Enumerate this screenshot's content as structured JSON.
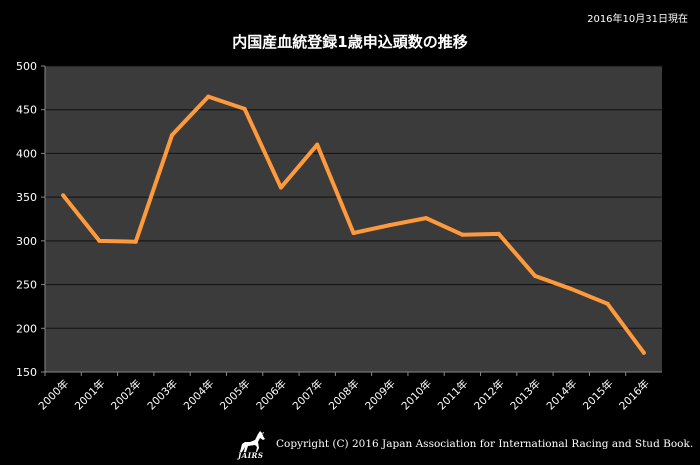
{
  "date_note": "2016年10月31日現在",
  "footer": {
    "logo_text": "JAIRS",
    "copyright": "Copyright (C) 2016 Japan Association for International Racing and Stud Book."
  },
  "colors": {
    "background": "#000000",
    "plot_area": "#3b3b3b",
    "gridline": "#111111",
    "line": "#ff9a3c",
    "text": "#ffffff"
  },
  "chart_data": {
    "type": "line",
    "title": "内国産血統登録1歳申込頭数の推移",
    "xlabel": "",
    "ylabel": "",
    "ylim": [
      150,
      500
    ],
    "ytick_step": 50,
    "yticks": [
      "150",
      "200",
      "250",
      "300",
      "350",
      "400",
      "450",
      "500"
    ],
    "grid": true,
    "legend": "none",
    "categories": [
      "2000年",
      "2001年",
      "2002年",
      "2003年",
      "2004年",
      "2005年",
      "2006年",
      "2007年",
      "2008年",
      "2009年",
      "2010年",
      "2011年",
      "2012年",
      "2013年",
      "2014年",
      "2015年",
      "2016年"
    ],
    "series": [
      {
        "values": [
          352,
          300,
          299,
          421,
          465,
          451,
          361,
          410,
          309,
          318,
          326,
          307,
          308,
          260,
          245,
          228,
          172
        ]
      }
    ]
  }
}
